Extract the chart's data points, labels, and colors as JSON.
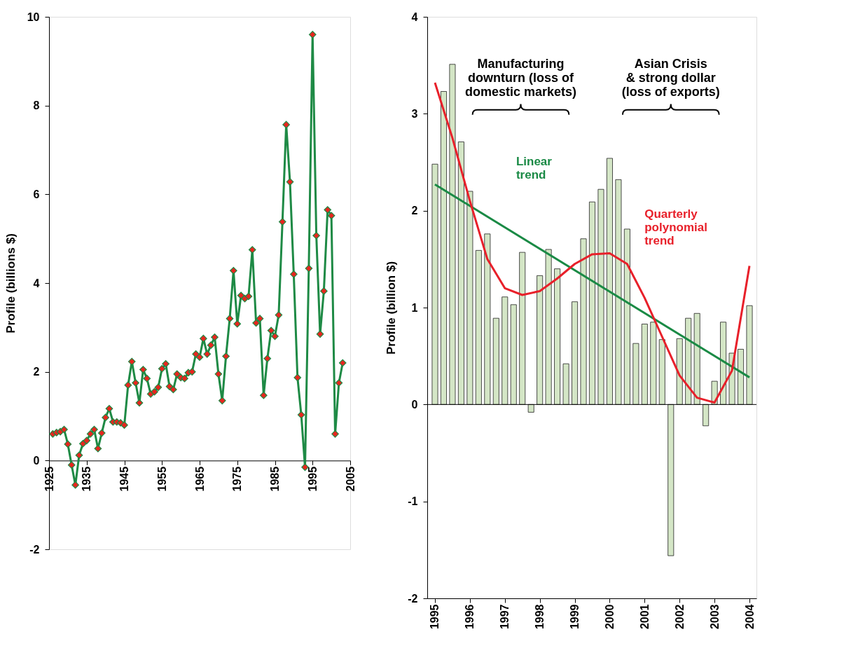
{
  "chart_data": [
    {
      "type": "line",
      "ylabel": "Profile (billions $)",
      "xlim": [
        1925,
        2005
      ],
      "ylim": [
        -2,
        10
      ],
      "xticks": [
        1925,
        1935,
        1945,
        1955,
        1965,
        1975,
        1985,
        1995,
        2005
      ],
      "yticks": [
        -2,
        0,
        2,
        4,
        6,
        8,
        10
      ],
      "marker": "diamond",
      "line_style": "solid",
      "x": [
        1926,
        1927,
        1928,
        1929,
        1930,
        1931,
        1932,
        1933,
        1934,
        1935,
        1936,
        1937,
        1938,
        1939,
        1940,
        1941,
        1942,
        1943,
        1944,
        1945,
        1946,
        1947,
        1948,
        1949,
        1950,
        1951,
        1952,
        1953,
        1954,
        1955,
        1956,
        1957,
        1958,
        1959,
        1960,
        1961,
        1962,
        1963,
        1964,
        1965,
        1966,
        1967,
        1968,
        1969,
        1970,
        1971,
        1972,
        1973,
        1974,
        1975,
        1976,
        1977,
        1978,
        1979,
        1980,
        1981,
        1982,
        1983,
        1984,
        1985,
        1986,
        1987,
        1988,
        1989,
        1990,
        1991,
        1992,
        1993,
        1994,
        1995,
        1996,
        1997,
        1998,
        1999,
        2000,
        2001,
        2002,
        2003
      ],
      "series": [
        {
          "color": "#1e8a45",
          "colors": [
            "#e8251f",
            "#e8251f",
            "#e8251f",
            "#e8251f",
            "#e8251f",
            "#e8251f",
            "#e8251f",
            "#e8251f",
            "#e8251f",
            "#e8251f",
            "#e8251f",
            "#e8251f",
            "#e8251f",
            "#e8251f",
            "#e8251f",
            "#e8251f",
            "#e8251f",
            "#e8251f",
            "#e8251f",
            "#e8251f",
            "#e8251f",
            "#e8251f",
            "#e8251f",
            "#e8251f",
            "#e8251f",
            "#e8251f",
            "#e8251f",
            "#e8251f",
            "#e8251f",
            "#e8251f",
            "#e8251f",
            "#e8251f",
            "#e8251f",
            "#e8251f",
            "#e8251f",
            "#e8251f",
            "#e8251f",
            "#e8251f",
            "#e8251f",
            "#e8251f",
            "#e8251f",
            "#e8251f",
            "#e8251f",
            "#e8251f",
            "#e8251f",
            "#e8251f",
            "#e8251f",
            "#e8251f",
            "#e8251f",
            "#e8251f",
            "#e8251f",
            "#e8251f",
            "#e8251f",
            "#e8251f",
            "#e8251f",
            "#e8251f",
            "#e8251f",
            "#e8251f",
            "#e8251f",
            "#e8251f",
            "#e8251f",
            "#e8251f",
            "#e8251f",
            "#e8251f",
            "#e8251f",
            "#e8251f",
            "#e8251f",
            "#e8251f",
            "#e8251f",
            "#e8251f",
            "#e8251f",
            "#e8251f",
            "#e8251f",
            "#e8251f",
            "#e8251f",
            "#e8251f",
            "#e8251f",
            "#e8251f"
          ],
          "values": [
            0.6,
            0.63,
            0.65,
            0.7,
            0.37,
            -0.1,
            -0.55,
            0.12,
            0.38,
            0.45,
            0.6,
            0.7,
            0.27,
            0.62,
            0.97,
            1.17,
            0.87,
            0.87,
            0.85,
            0.8,
            1.7,
            2.23,
            1.75,
            1.3,
            2.05,
            1.85,
            1.5,
            1.55,
            1.65,
            2.07,
            2.18,
            1.67,
            1.6,
            1.95,
            1.87,
            1.85,
            1.98,
            2.0,
            2.4,
            2.33,
            2.75,
            2.4,
            2.6,
            2.78,
            1.95,
            1.35,
            2.35,
            3.2,
            4.28,
            3.08,
            3.72,
            3.65,
            3.7,
            4.75,
            3.1,
            3.2,
            1.47,
            2.3,
            2.93,
            2.8,
            3.28,
            5.38,
            7.57,
            6.28,
            4.2,
            1.87,
            1.03,
            -0.15,
            4.33,
            9.6,
            5.07,
            2.85,
            3.82,
            5.65,
            5.52,
            0.6,
            1.75,
            2.2
          ]
        }
      ]
    },
    {
      "type": "bar",
      "ylabel": "Profile (billion $)",
      "xlim": [
        1994.88,
        2004.1
      ],
      "ylim": [
        -2,
        4
      ],
      "xticks": [
        1995,
        1996,
        1997,
        1998,
        1999,
        2000,
        2001,
        2002,
        2003,
        2004
      ],
      "yticks": [
        -2,
        -1,
        0,
        1,
        2,
        3,
        4
      ],
      "x": [
        1995,
        1995.25,
        1995.5,
        1995.75,
        1996,
        1996.25,
        1996.5,
        1996.75,
        1997,
        1997.25,
        1997.5,
        1997.75,
        1998,
        1998.25,
        1998.5,
        1998.75,
        1999,
        1999.25,
        1999.5,
        1999.75,
        2000,
        2000.25,
        2000.5,
        2000.75,
        2001,
        2001.25,
        2001.5,
        2001.75,
        2002,
        2002.25,
        2002.5,
        2002.75,
        2003,
        2003.25,
        2003.5,
        2003.75,
        2004
      ],
      "annotations": [
        "Manufacturing\ndownturn (loss of\ndomestic markets)",
        "Asian Crisis\n& strong dollar\n(loss of exports)"
      ],
      "series": [
        {
          "color": "#d4e6c6",
          "values": [
            2.48,
            3.23,
            3.51,
            2.71,
            2.2,
            1.59,
            1.76,
            0.89,
            1.11,
            1.03,
            1.57,
            -0.08,
            1.33,
            1.6,
            1.4,
            0.42,
            1.06,
            1.71,
            2.09,
            2.22,
            2.54,
            2.32,
            1.81,
            0.63,
            0.83,
            0.85,
            0.67,
            -1.56,
            0.68,
            0.89,
            0.94,
            -0.22,
            0.24,
            0.85,
            0.53,
            0.57,
            1.02
          ]
        },
        {
          "type": "line",
          "name": "Linear\ntrend",
          "color": "#1a8a45",
          "x": [
            1995,
            2004
          ],
          "values": [
            2.27,
            0.28
          ]
        },
        {
          "type": "line",
          "name": "Quarterly\npolynomial\ntrend",
          "color": "#e8202a",
          "x": [
            1995,
            1995.5,
            1996,
            1996.5,
            1997,
            1997.5,
            1998,
            1998.5,
            1999,
            1999.5,
            2000,
            2000.5,
            2001,
            2001.5,
            2002,
            2002.5,
            2003,
            2003.5,
            2004
          ],
          "values": [
            3.32,
            2.75,
            2.1,
            1.5,
            1.2,
            1.13,
            1.17,
            1.3,
            1.45,
            1.55,
            1.56,
            1.45,
            1.1,
            0.7,
            0.3,
            0.07,
            0.02,
            0.35,
            1.43
          ]
        }
      ]
    }
  ]
}
